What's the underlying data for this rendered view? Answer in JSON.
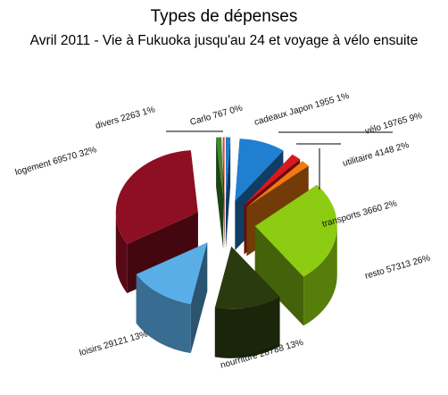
{
  "chart_data": {
    "type": "pie",
    "style": "3d-exploded",
    "title": "Types de dépenses",
    "subtitle": "Avril 2011 - Vie à Fukuoka jusqu'au 24 et voyage à vélo ensuite",
    "slices": [
      {
        "name": "cadeaux Japon",
        "value": 1955,
        "percent": "1%",
        "color": "#1f7fd0",
        "label": "cadeaux Japon 1955 1%"
      },
      {
        "name": "vélo",
        "value": 19765,
        "percent": "9%",
        "color": "#1f7fd0",
        "label": "vélo 19765 9%"
      },
      {
        "name": "utilitaire",
        "value": 4148,
        "percent": "2%",
        "color": "#d71920",
        "label": "utilitaire 4148 2%"
      },
      {
        "name": "transports",
        "value": 3660,
        "percent": "2%",
        "color": "#f07a10",
        "label": "transports 3660 2%"
      },
      {
        "name": "resto",
        "value": 57313,
        "percent": "26%",
        "color": "#8ccc12",
        "label": "resto 57313 26%"
      },
      {
        "name": "nourriture",
        "value": 28788,
        "percent": "13%",
        "color": "#2a3b10",
        "label": "nourriture 28788 13%"
      },
      {
        "name": "loisirs",
        "value": 29121,
        "percent": "13%",
        "color": "#5aaee8",
        "label": "loisirs 29121 13%"
      },
      {
        "name": "logement",
        "value": 69570,
        "percent": "32%",
        "color": "#8e0f22",
        "label": "logement 69570 32%"
      },
      {
        "name": "divers",
        "value": 2263,
        "percent": "1%",
        "color": "#3d8a2a",
        "label": "divers 2263 1%"
      },
      {
        "name": "Carlo",
        "value": 767,
        "percent": "0%",
        "color": "#e8432a",
        "label": "Carlo 767 0%"
      }
    ]
  }
}
